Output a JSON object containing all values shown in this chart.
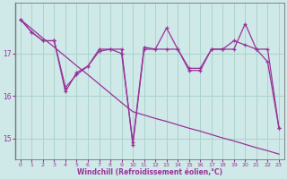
{
  "xlabel": "Windchill (Refroidissement éolien,°C)",
  "background_color": "#cfe8e8",
  "line_color": "#993399",
  "x_hours": [
    0,
    1,
    2,
    3,
    4,
    5,
    6,
    7,
    8,
    9,
    10,
    11,
    12,
    13,
    14,
    15,
    16,
    17,
    18,
    19,
    20,
    21,
    22,
    23
  ],
  "series1": [
    17.8,
    17.5,
    17.3,
    17.3,
    16.1,
    16.55,
    16.7,
    17.05,
    17.1,
    17.1,
    14.85,
    17.1,
    17.1,
    17.6,
    17.1,
    16.65,
    16.65,
    17.1,
    17.1,
    17.1,
    17.7,
    17.1,
    16.8,
    15.25
  ],
  "series2": [
    17.8,
    17.5,
    17.3,
    17.3,
    16.2,
    16.5,
    16.7,
    17.1,
    17.1,
    17.0,
    14.9,
    17.15,
    17.1,
    17.1,
    17.1,
    16.6,
    16.6,
    17.1,
    17.1,
    17.3,
    17.2,
    17.1,
    17.1,
    15.25
  ],
  "trend_line": [
    17.8,
    17.58,
    17.36,
    17.15,
    16.93,
    16.71,
    16.5,
    16.28,
    16.06,
    15.84,
    15.63,
    15.55,
    15.47,
    15.4,
    15.32,
    15.24,
    15.17,
    15.09,
    15.01,
    14.94,
    14.86,
    14.78,
    14.71,
    14.63
  ],
  "ylim": [
    14.5,
    18.2
  ],
  "yticks": [
    15,
    16,
    17
  ],
  "xlim": [
    -0.5,
    23.5
  ],
  "grid_color": "#aad4cc",
  "xlabel_color": "#993399",
  "tick_color": "#993399"
}
